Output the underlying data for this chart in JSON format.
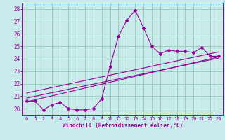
{
  "xlabel": "Windchill (Refroidissement éolien,°C)",
  "bg_color": "#c8eaea",
  "line_color": "#990099",
  "grid_color": "#99ccbb",
  "xmin": -0.5,
  "xmax": 23.5,
  "ymin": 19.5,
  "ymax": 28.5,
  "yticks": [
    20,
    21,
    22,
    23,
    24,
    25,
    26,
    27,
    28
  ],
  "xticks": [
    0,
    1,
    2,
    3,
    4,
    5,
    6,
    7,
    8,
    9,
    10,
    11,
    12,
    13,
    14,
    15,
    16,
    17,
    18,
    19,
    20,
    21,
    22,
    23
  ],
  "main_x": [
    0,
    1,
    2,
    3,
    4,
    5,
    6,
    7,
    8,
    9,
    10,
    11,
    12,
    13,
    14,
    15,
    16,
    17,
    18,
    19,
    20,
    21,
    22,
    23
  ],
  "main_y": [
    20.6,
    20.6,
    19.9,
    20.3,
    20.5,
    20.0,
    19.9,
    19.9,
    20.0,
    20.8,
    23.4,
    25.8,
    27.1,
    27.9,
    26.5,
    25.0,
    24.4,
    24.7,
    24.6,
    24.6,
    24.5,
    24.9,
    24.2,
    24.2
  ],
  "line1_x": [
    0,
    23
  ],
  "line1_y": [
    20.55,
    24.15
  ],
  "line2_x": [
    0,
    23
  ],
  "line2_y": [
    20.85,
    24.05
  ],
  "line3_x": [
    0,
    23
  ],
  "line3_y": [
    21.25,
    24.55
  ]
}
